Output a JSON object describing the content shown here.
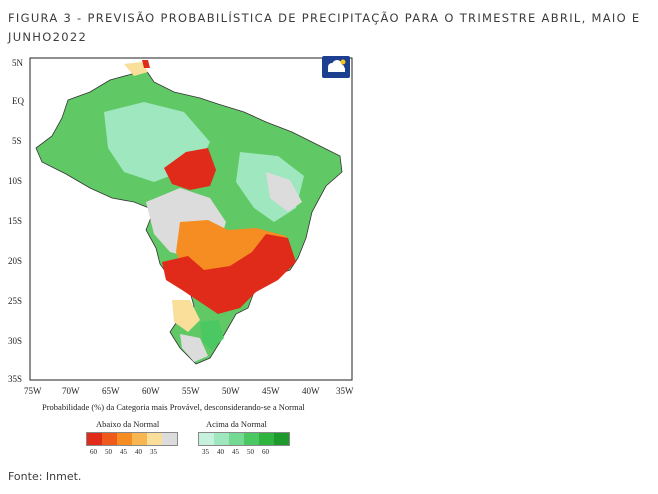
{
  "caption": {
    "line1": "FIGURA 3 -  PREVISÃO PROBABILÍSTICA DE PRECIPITAÇÃO PARA O TRIMESTRE ABRIL, MAIO E",
    "line2": "JUNHO2022"
  },
  "map": {
    "lat_labels": [
      "5N",
      "EQ",
      "5S",
      "10S",
      "15S",
      "20S",
      "25S",
      "30S",
      "35S"
    ],
    "lon_labels": [
      "75W",
      "70W",
      "65W",
      "60W",
      "55W",
      "50W",
      "45W",
      "40W",
      "35W"
    ],
    "probability_label": "Probabilidade (%) da Categoria mais Provável, desconsiderando-se a Normal",
    "legend_below": {
      "title": "Abaixo da Normal",
      "values": [
        "60",
        "50",
        "45",
        "40",
        "35"
      ],
      "colors": [
        "#e02a1a",
        "#ef5a1c",
        "#f58d22",
        "#f7b650",
        "#f9df9a"
      ],
      "neutral_color": "#dcdcdc"
    },
    "legend_above": {
      "title": "Acima da Normal",
      "values": [
        "35",
        "40",
        "45",
        "50",
        "60"
      ],
      "colors": [
        "#c6f1dc",
        "#9ee7bf",
        "#74d992",
        "#4cc862",
        "#2fb53f"
      ]
    },
    "regions": {
      "background_green": "#60c865",
      "light_green": "#9ee7bf",
      "gray": "#dcdcdc",
      "red": "#e02a1a",
      "orange": "#f58d22",
      "yellow": "#f9df9a"
    },
    "logo_icon": "inmet-logo-icon"
  },
  "source": "Fonte: Inmet."
}
